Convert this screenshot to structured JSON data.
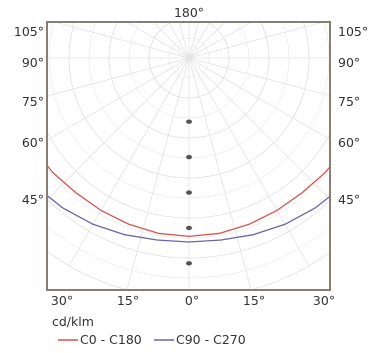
{
  "chart_data": {
    "type": "polar",
    "unit_label": "cd/klm",
    "top_label": "180°",
    "left_angle_labels": [
      "105°",
      "90°",
      "75°",
      "60°",
      "45°"
    ],
    "right_angle_labels": [
      "105°",
      "90°",
      "75°",
      "60°",
      "45°"
    ],
    "bottom_angle_labels": [
      "30°",
      "15°",
      "0°",
      "15°",
      "30°"
    ],
    "radial_values": [
      100,
      200,
      300,
      400,
      500
    ],
    "grid": true,
    "legend_position": "bottom",
    "series": [
      {
        "name": "C0 - C180",
        "color": "#d9534f",
        "points": [
          [
            -180,
            320
          ],
          [
            -170,
            330
          ],
          [
            -160,
            350
          ],
          [
            -150,
            375
          ],
          [
            -140,
            405
          ],
          [
            -135,
            420
          ],
          [
            -130,
            435
          ],
          [
            -120,
            460
          ],
          [
            -110,
            475
          ],
          [
            -100,
            480
          ],
          [
            -90,
            478
          ],
          [
            -80,
            470
          ],
          [
            -70,
            460
          ],
          [
            -60,
            450
          ],
          [
            -50,
            445
          ],
          [
            -40,
            440
          ],
          [
            -30,
            440
          ],
          [
            -20,
            442
          ],
          [
            -10,
            445
          ],
          [
            0,
            446
          ],
          [
            10,
            445
          ],
          [
            20,
            442
          ],
          [
            30,
            440
          ],
          [
            40,
            440
          ],
          [
            50,
            445
          ],
          [
            60,
            450
          ],
          [
            70,
            460
          ],
          [
            80,
            470
          ],
          [
            90,
            478
          ],
          [
            100,
            480
          ],
          [
            110,
            475
          ],
          [
            120,
            460
          ],
          [
            130,
            435
          ],
          [
            135,
            420
          ],
          [
            140,
            405
          ],
          [
            150,
            375
          ],
          [
            160,
            350
          ],
          [
            170,
            330
          ],
          [
            180,
            320
          ]
        ]
      },
      {
        "name": "C90 - C270",
        "color": "#6b64a8",
        "points": [
          [
            -180,
            320
          ],
          [
            -175,
            340
          ],
          [
            -170,
            380
          ],
          [
            -165,
            430
          ],
          [
            -160,
            490
          ],
          [
            -155,
            545
          ],
          [
            -150,
            575
          ],
          [
            -140,
            590
          ],
          [
            -130,
            570
          ],
          [
            -120,
            555
          ],
          [
            -110,
            550
          ],
          [
            -100,
            540
          ],
          [
            -90,
            525
          ],
          [
            -80,
            520
          ],
          [
            -70,
            515
          ],
          [
            -60,
            508
          ],
          [
            -50,
            500
          ],
          [
            -40,
            490
          ],
          [
            -30,
            480
          ],
          [
            -20,
            470
          ],
          [
            -10,
            462
          ],
          [
            0,
            460
          ],
          [
            10,
            462
          ],
          [
            20,
            470
          ],
          [
            30,
            480
          ],
          [
            40,
            490
          ],
          [
            50,
            500
          ],
          [
            60,
            508
          ],
          [
            70,
            515
          ],
          [
            80,
            520
          ],
          [
            90,
            525
          ],
          [
            100,
            540
          ],
          [
            110,
            550
          ],
          [
            120,
            555
          ],
          [
            130,
            570
          ],
          [
            140,
            590
          ],
          [
            150,
            575
          ],
          [
            155,
            545
          ],
          [
            160,
            490
          ],
          [
            165,
            430
          ],
          [
            170,
            380
          ],
          [
            175,
            340
          ],
          [
            180,
            320
          ]
        ]
      }
    ]
  }
}
